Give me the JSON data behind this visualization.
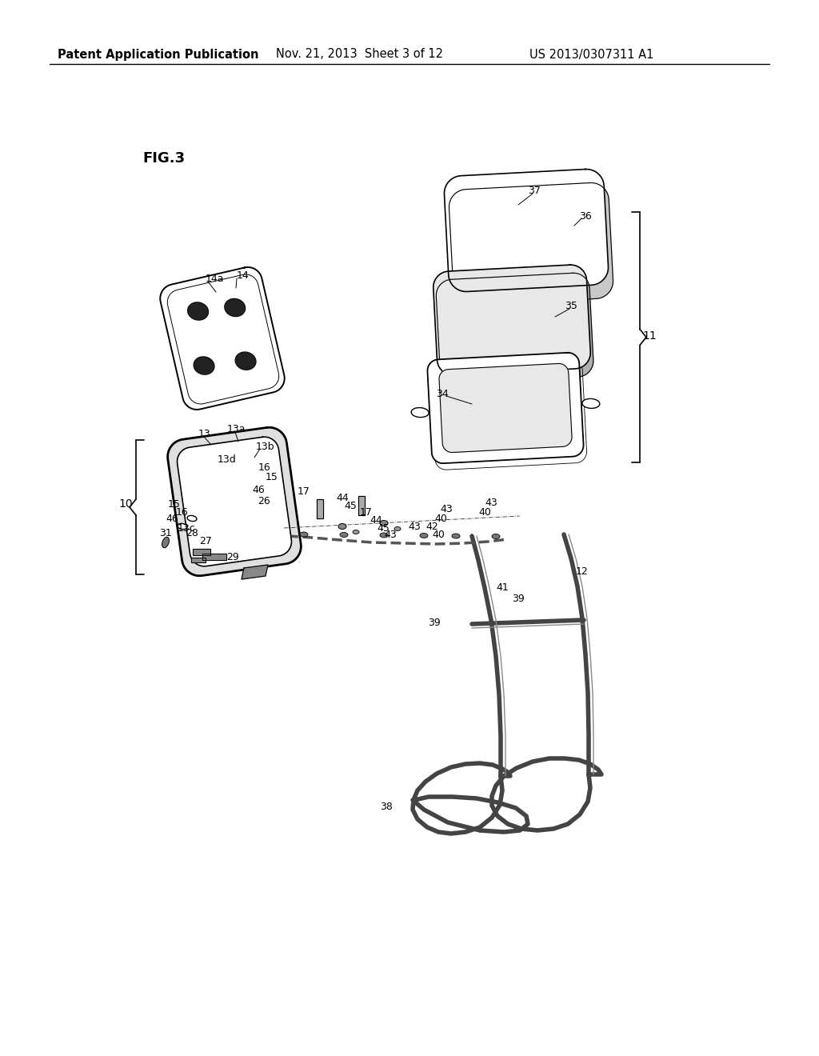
{
  "bg_color": "#ffffff",
  "header_left": "Patent Application Publication",
  "header_mid": "Nov. 21, 2013  Sheet 3 of 12",
  "header_right": "US 2013/0307311 A1",
  "fig_label": "FIG.3",
  "line_color": "#000000"
}
